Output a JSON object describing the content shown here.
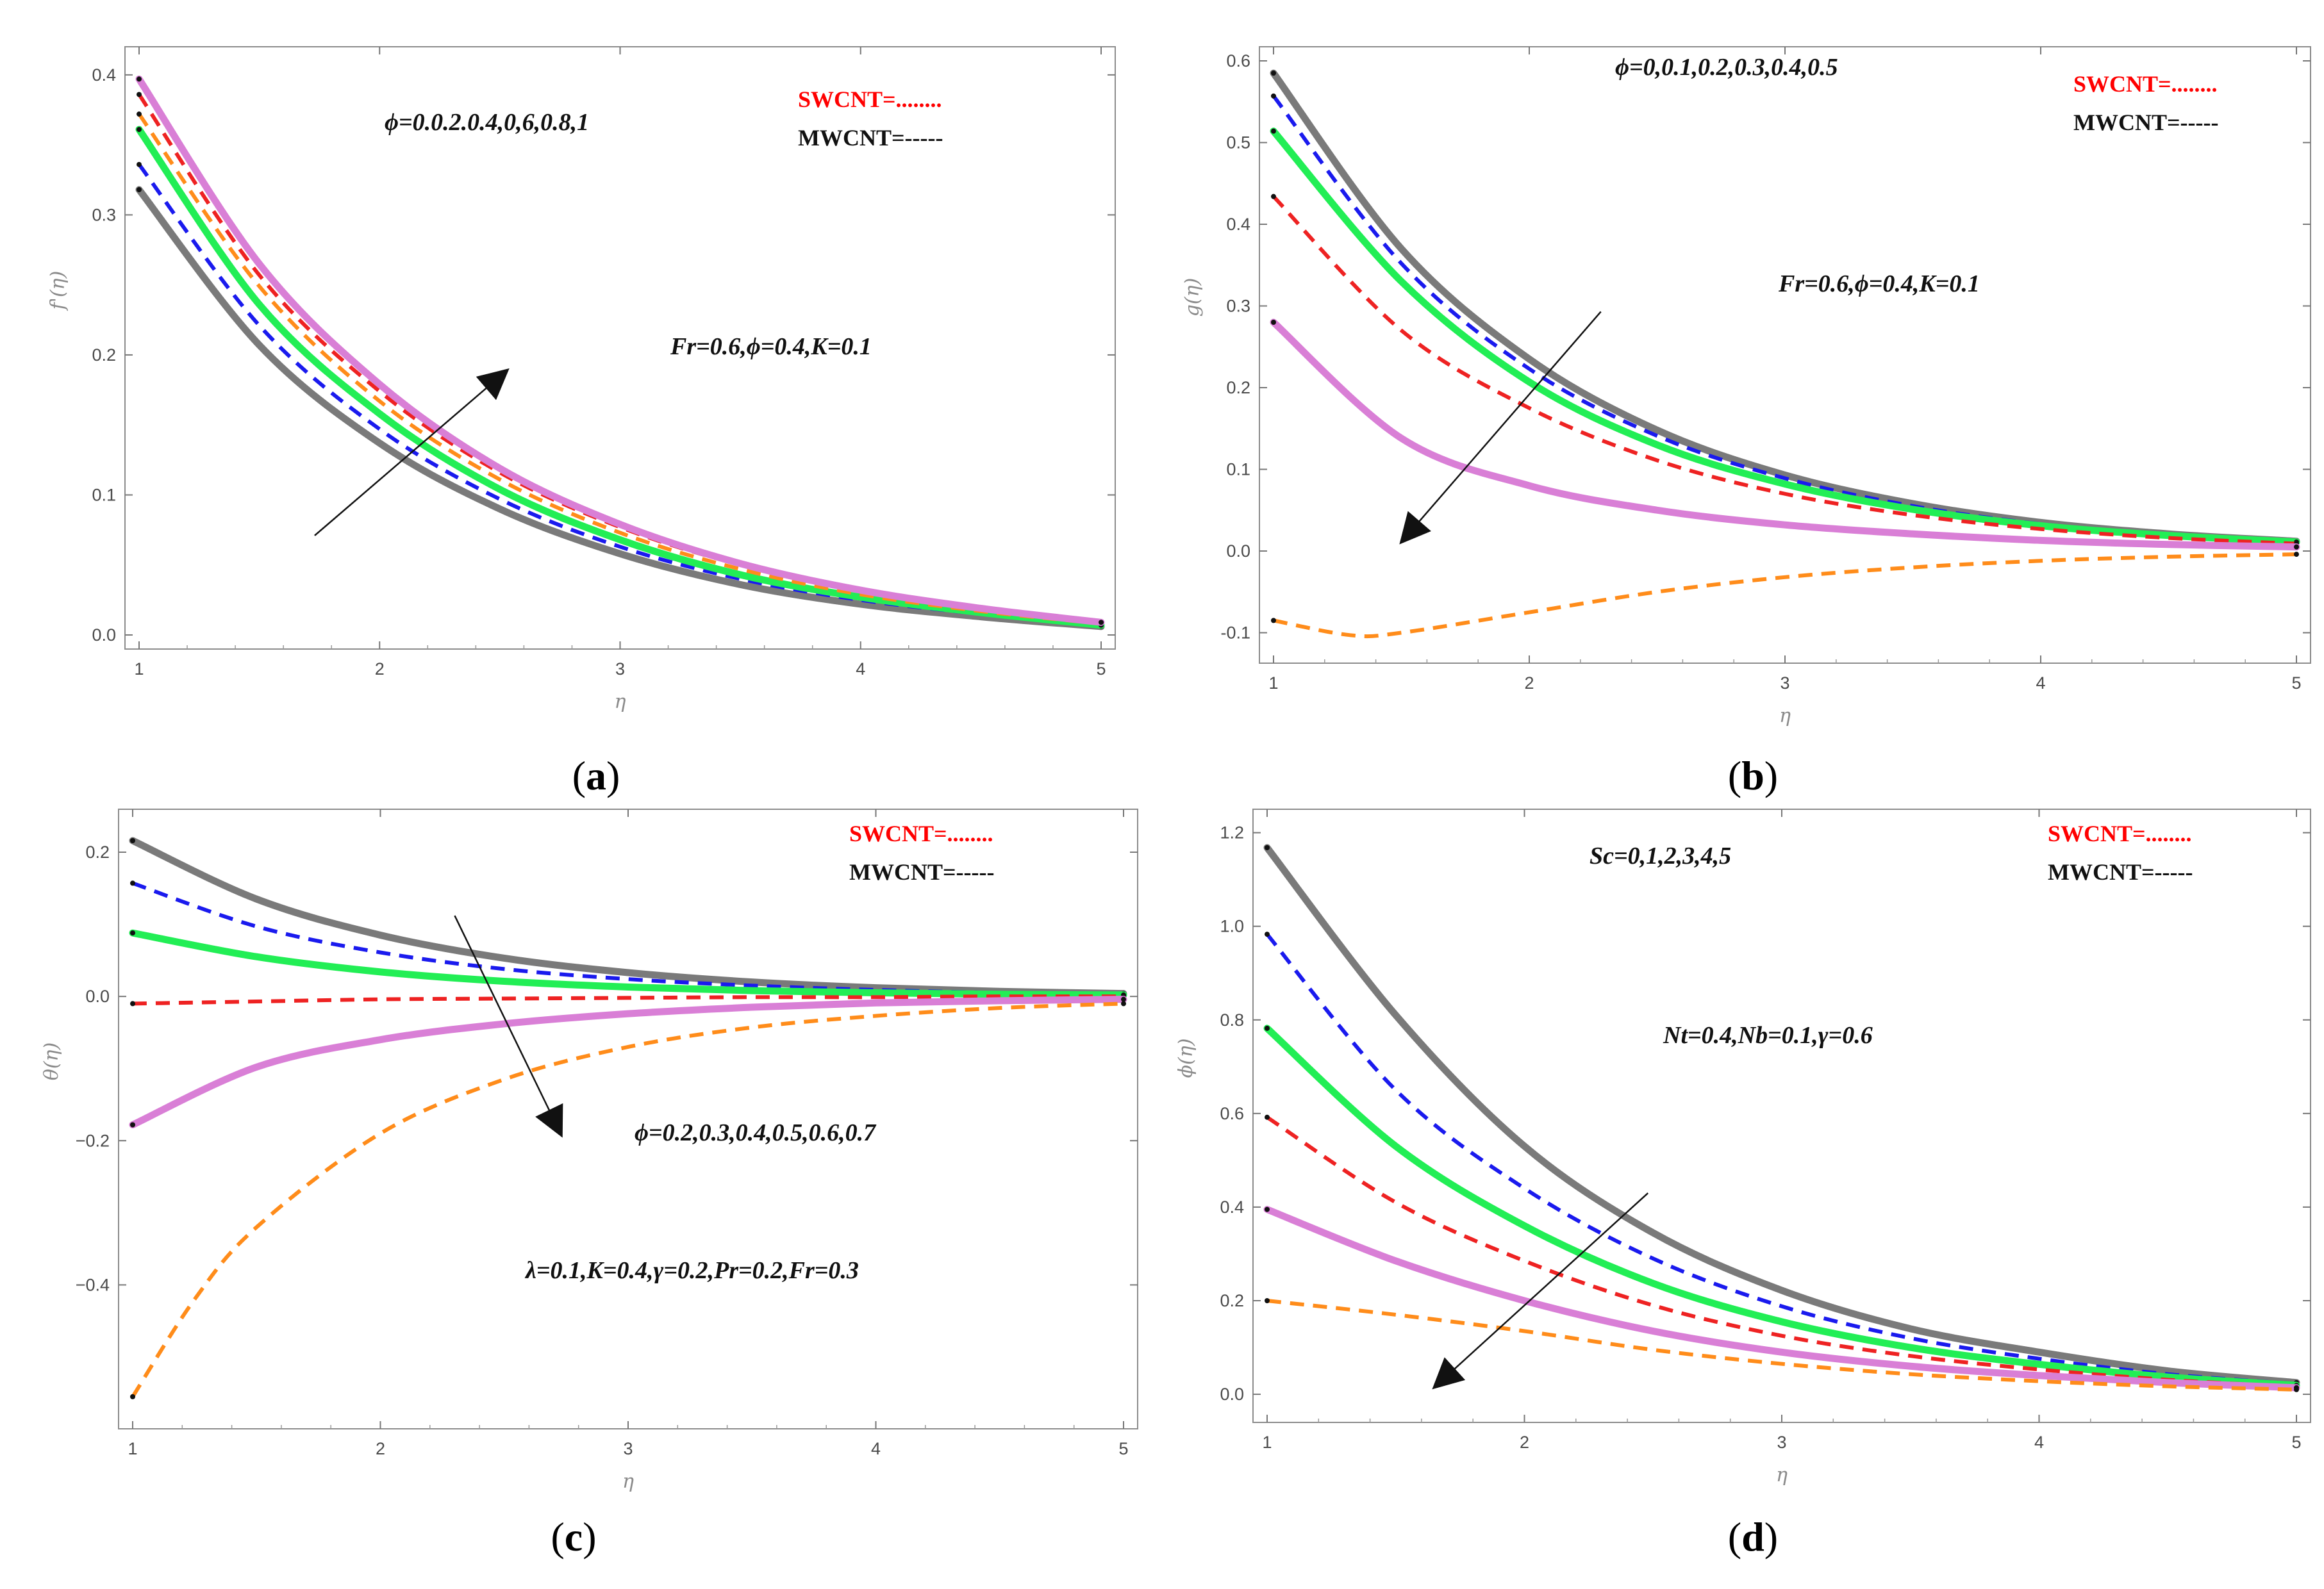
{
  "colors": {
    "gray": "#7a7a7a",
    "green": "#22ee55",
    "blue": "#1a1aee",
    "red": "#ee2222",
    "orange": "#ff8c1a",
    "magenta": "#d97fd6",
    "sw_legend": "#ff0000",
    "text": "#111111"
  },
  "chart_data": [
    {
      "id": "a",
      "type": "line",
      "caption_open": "(",
      "caption": "a",
      "caption_close": ")",
      "xlabel": "η",
      "ylabel": "f'(η)",
      "xlim": [
        1,
        5
      ],
      "ylim": [
        0,
        0.41
      ],
      "xticks": [
        "1",
        "2",
        "3",
        "4",
        "5"
      ],
      "yticks": [
        "0.0",
        "0.1",
        "0.2",
        "0.3",
        "0.4"
      ],
      "ytick_values": [
        0.0,
        0.1,
        0.2,
        0.3,
        0.4
      ],
      "legend": {
        "swcnt": "SWCNT=........",
        "mwcnt": "MWCNT=-----"
      },
      "annotations": [
        "ϕ=0.0.2.0.4,0,6,0.8,1",
        "Fr=0.6,ϕ=0.4,K=0.1"
      ],
      "arrow": {
        "from": [
          1.73,
          0.071
        ],
        "to": [
          2.53,
          0.189
        ]
      },
      "series": [
        {
          "name": "gray",
          "style": "solid",
          "x": [
            1,
            1.5,
            2,
            2.5,
            3,
            3.5,
            4,
            4.5,
            5
          ],
          "values": [
            0.318,
            0.207,
            0.137,
            0.09,
            0.058,
            0.036,
            0.022,
            0.013,
            0.006
          ]
        },
        {
          "name": "blue",
          "style": "dashed",
          "x": [
            1,
            1.5,
            2,
            2.5,
            3,
            3.5,
            4,
            4.5,
            5
          ],
          "values": [
            0.336,
            0.221,
            0.147,
            0.097,
            0.063,
            0.04,
            0.025,
            0.015,
            0.007
          ]
        },
        {
          "name": "green",
          "style": "solid",
          "x": [
            1,
            1.5,
            2,
            2.5,
            3,
            3.5,
            4,
            4.5,
            5
          ],
          "values": [
            0.361,
            0.236,
            0.158,
            0.104,
            0.068,
            0.043,
            0.027,
            0.016,
            0.007
          ]
        },
        {
          "name": "orange",
          "style": "dashed",
          "x": [
            1,
            1.5,
            2,
            2.5,
            3,
            3.5,
            4,
            4.5,
            5
          ],
          "values": [
            0.372,
            0.249,
            0.167,
            0.111,
            0.073,
            0.047,
            0.029,
            0.017,
            0.008
          ]
        },
        {
          "name": "red",
          "style": "dashed",
          "x": [
            1,
            1.5,
            2,
            2.5,
            3,
            3.5,
            4,
            4.5,
            5
          ],
          "values": [
            0.386,
            0.257,
            0.174,
            0.116,
            0.077,
            0.05,
            0.031,
            0.018,
            0.009
          ]
        },
        {
          "name": "magenta",
          "style": "solid",
          "x": [
            1,
            1.5,
            2,
            2.5,
            3,
            3.5,
            4,
            4.5,
            5
          ],
          "values": [
            0.397,
            0.265,
            0.179,
            0.119,
            0.079,
            0.051,
            0.032,
            0.019,
            0.009
          ]
        }
      ]
    },
    {
      "id": "b",
      "type": "line",
      "caption_open": "(",
      "caption": "b",
      "caption_close": ")",
      "xlabel": "η",
      "ylabel": "g(η)",
      "xlim": [
        1,
        5
      ],
      "ylim": [
        -0.12,
        0.6
      ],
      "xticks": [
        "1",
        "2",
        "3",
        "4",
        "5"
      ],
      "yticks": [
        "-0.1",
        "0.0",
        "0.1",
        "0.2",
        "0.3",
        "0.4",
        "0.5",
        "0.6"
      ],
      "ytick_values": [
        -0.1,
        0.0,
        0.1,
        0.2,
        0.3,
        0.4,
        0.5,
        0.6
      ],
      "legend": {
        "swcnt": "SWCNT=........",
        "mwcnt": "MWCNT=-----"
      },
      "annotations": [
        "ϕ=0,0.1,0.2,0.3,0.4,0.5",
        "Fr=0.6,ϕ=0.4,K=0.1"
      ],
      "arrow": {
        "from": [
          2.28,
          0.293
        ],
        "to": [
          1.5,
          0.011
        ]
      },
      "series": [
        {
          "name": "gray",
          "style": "solid",
          "x": [
            1,
            1.5,
            2,
            2.5,
            3,
            3.5,
            4,
            4.5,
            5
          ],
          "values": [
            0.585,
            0.37,
            0.235,
            0.148,
            0.093,
            0.058,
            0.035,
            0.021,
            0.012
          ]
        },
        {
          "name": "blue",
          "style": "dashed",
          "x": [
            1,
            1.5,
            2,
            2.5,
            3,
            3.5,
            4,
            4.5,
            5
          ],
          "values": [
            0.557,
            0.352,
            0.223,
            0.141,
            0.089,
            0.055,
            0.033,
            0.02,
            0.011
          ]
        },
        {
          "name": "green",
          "style": "solid",
          "x": [
            1,
            1.5,
            2,
            2.5,
            3,
            3.5,
            4,
            4.5,
            5
          ],
          "values": [
            0.514,
            0.33,
            0.207,
            0.13,
            0.082,
            0.051,
            0.031,
            0.019,
            0.011
          ]
        },
        {
          "name": "red",
          "style": "dashed",
          "x": [
            1,
            1.5,
            2,
            2.5,
            3,
            3.5,
            4,
            4.5,
            5
          ],
          "values": [
            0.434,
            0.27,
            0.175,
            0.111,
            0.07,
            0.044,
            0.027,
            0.016,
            0.009
          ]
        },
        {
          "name": "magenta",
          "style": "solid",
          "x": [
            1,
            1.5,
            2,
            2.5,
            3,
            3.5,
            4,
            4.5,
            5
          ],
          "values": [
            0.28,
            0.138,
            0.08,
            0.05,
            0.032,
            0.021,
            0.013,
            0.008,
            0.005
          ]
        },
        {
          "name": "orange",
          "style": "dashed",
          "x": [
            1,
            1.3,
            1.5,
            2,
            2.5,
            3,
            3.5,
            4,
            4.5,
            5
          ],
          "values": [
            -0.085,
            -0.103,
            -0.1,
            -0.075,
            -0.05,
            -0.032,
            -0.02,
            -0.012,
            -0.007,
            -0.004
          ]
        }
      ]
    },
    {
      "id": "c",
      "type": "line",
      "caption_open": "(",
      "caption": "c",
      "caption_close": ")",
      "xlabel": "η",
      "ylabel": "θ(η)",
      "xlim": [
        1,
        5
      ],
      "ylim": [
        -0.58,
        0.24
      ],
      "xticks": [
        "1",
        "2",
        "3",
        "4",
        "5"
      ],
      "yticks": [
        "−0.4",
        "−0.2",
        "0.0",
        "0.2"
      ],
      "ytick_values": [
        -0.4,
        -0.2,
        0.0,
        0.2
      ],
      "legend": {
        "swcnt": "SWCNT=........",
        "mwcnt": "MWCNT=-----"
      },
      "annotations": [
        "ϕ=0.2,0.3,0.4,0.5,0.6,0.7",
        "λ=0.1,K=0.4,γ=0.2,Pr=0.2,Fr=0.3"
      ],
      "arrow": {
        "from": [
          2.3,
          0.112
        ],
        "to": [
          2.73,
          -0.192
        ]
      },
      "series": [
        {
          "name": "gray",
          "style": "solid",
          "x": [
            1,
            1.5,
            2,
            2.5,
            3,
            3.5,
            4,
            4.5,
            5
          ],
          "values": [
            0.216,
            0.135,
            0.085,
            0.053,
            0.033,
            0.02,
            0.012,
            0.007,
            0.004
          ]
        },
        {
          "name": "blue",
          "style": "dashed",
          "x": [
            1,
            1.5,
            2,
            2.5,
            3,
            3.5,
            4,
            4.5,
            5
          ],
          "values": [
            0.157,
            0.097,
            0.061,
            0.038,
            0.024,
            0.015,
            0.009,
            0.005,
            0.003
          ]
        },
        {
          "name": "green",
          "style": "solid",
          "x": [
            1,
            1.5,
            2,
            2.5,
            3,
            3.5,
            4,
            4.5,
            5
          ],
          "values": [
            0.088,
            0.055,
            0.034,
            0.021,
            0.013,
            0.008,
            0.005,
            0.003,
            0.002
          ]
        },
        {
          "name": "red",
          "style": "dashed",
          "x": [
            1,
            1.5,
            2,
            2.5,
            3,
            3.5,
            4,
            4.5,
            5
          ],
          "values": [
            -0.01,
            -0.007,
            -0.004,
            -0.003,
            -0.002,
            -0.001,
            -0.001,
            0.0,
            0.0
          ]
        },
        {
          "name": "magenta",
          "style": "solid",
          "x": [
            1,
            1.5,
            2,
            2.5,
            3,
            3.5,
            4,
            4.5,
            5
          ],
          "values": [
            -0.178,
            -0.098,
            -0.06,
            -0.038,
            -0.024,
            -0.015,
            -0.009,
            -0.006,
            -0.004
          ]
        },
        {
          "name": "orange",
          "style": "dashed",
          "x": [
            1,
            1.25,
            1.5,
            2,
            2.5,
            3,
            3.5,
            4,
            4.5,
            5
          ],
          "values": [
            -0.555,
            -0.42,
            -0.32,
            -0.19,
            -0.115,
            -0.07,
            -0.043,
            -0.027,
            -0.016,
            -0.01
          ]
        }
      ]
    },
    {
      "id": "d",
      "type": "line",
      "caption_open": "(",
      "caption": "d",
      "caption_close": ")",
      "xlabel": "η",
      "ylabel": "ϕ(η)",
      "xlim": [
        1,
        5
      ],
      "ylim": [
        -0.03,
        1.22
      ],
      "xticks": [
        "1",
        "2",
        "3",
        "4",
        "5"
      ],
      "yticks": [
        "0.0",
        "0.2",
        "0.4",
        "0.6",
        "0.8",
        "1.0",
        "1.2"
      ],
      "ytick_values": [
        0.0,
        0.2,
        0.4,
        0.6,
        0.8,
        1.0,
        1.2
      ],
      "legend": {
        "swcnt": "SWCNT=........",
        "mwcnt": "MWCNT=-----"
      },
      "annotations": [
        "Sc=0,1,2,3,4,5",
        "Nt=0.4,Nb=0.1,γ=0.6"
      ],
      "arrow": {
        "from": [
          2.48,
          0.43
        ],
        "to": [
          1.65,
          0.015
        ]
      },
      "series": [
        {
          "name": "gray",
          "style": "solid",
          "x": [
            1,
            1.5,
            2,
            2.5,
            3,
            3.5,
            4,
            4.5,
            5
          ],
          "values": [
            1.168,
            0.81,
            0.53,
            0.345,
            0.222,
            0.14,
            0.09,
            0.05,
            0.025
          ]
        },
        {
          "name": "blue",
          "style": "dashed",
          "x": [
            1,
            1.5,
            2,
            2.5,
            3,
            3.5,
            4,
            4.5,
            5
          ],
          "values": [
            0.983,
            0.65,
            0.44,
            0.29,
            0.188,
            0.12,
            0.076,
            0.043,
            0.022
          ]
        },
        {
          "name": "green",
          "style": "solid",
          "x": [
            1,
            1.5,
            2,
            2.5,
            3,
            3.5,
            4,
            4.5,
            5
          ],
          "values": [
            0.782,
            0.53,
            0.36,
            0.237,
            0.155,
            0.1,
            0.064,
            0.037,
            0.019
          ]
        },
        {
          "name": "red",
          "style": "dashed",
          "x": [
            1,
            1.5,
            2,
            2.5,
            3,
            3.5,
            4,
            4.5,
            5
          ],
          "values": [
            0.592,
            0.41,
            0.285,
            0.19,
            0.125,
            0.082,
            0.053,
            0.031,
            0.016
          ]
        },
        {
          "name": "magenta",
          "style": "solid",
          "x": [
            1,
            1.5,
            2,
            2.5,
            3,
            3.5,
            4,
            4.5,
            5
          ],
          "values": [
            0.395,
            0.285,
            0.2,
            0.135,
            0.09,
            0.06,
            0.04,
            0.025,
            0.014
          ]
        },
        {
          "name": "orange",
          "style": "dashed",
          "x": [
            1,
            1.5,
            2,
            2.5,
            3,
            3.5,
            4,
            4.5,
            5
          ],
          "values": [
            0.2,
            0.17,
            0.135,
            0.095,
            0.065,
            0.043,
            0.028,
            0.017,
            0.01
          ]
        }
      ]
    }
  ]
}
